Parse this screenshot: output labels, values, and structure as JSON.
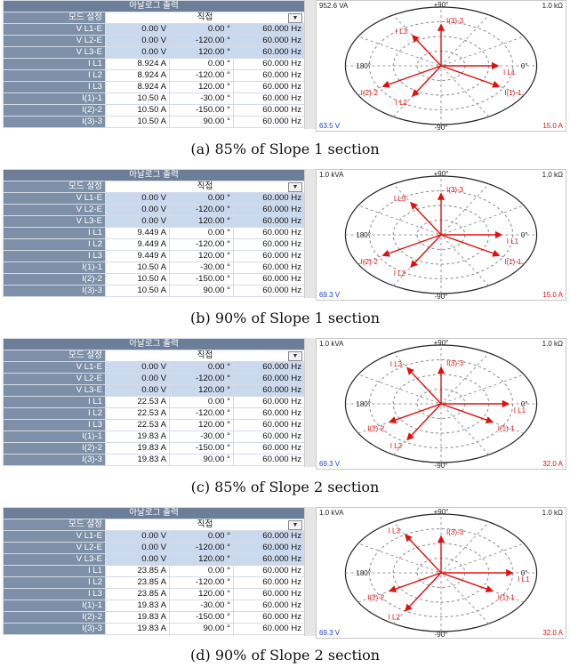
{
  "labels": {
    "title": "아날로그 출력",
    "mode_label": "모드 설정",
    "mode_value": "직접",
    "rows": [
      "V L1-E",
      "V L2-E",
      "V L3-E",
      "I L1",
      "I L2",
      "I L3",
      "I(1)-1",
      "I(2)-2",
      "I(3)-3"
    ]
  },
  "panels": [
    {
      "caption": "(a) 85% of Slope 1 section",
      "rows": [
        {
          "mag": "0.00 V",
          "ang": "0.00 °",
          "freq": "60.000 Hz"
        },
        {
          "mag": "0.00 V",
          "ang": "-120.00 °",
          "freq": "60.000 Hz"
        },
        {
          "mag": "0.00 V",
          "ang": "120.00 °",
          "freq": "60.000 Hz"
        },
        {
          "mag": "8.924 A",
          "ang": "0.00 °",
          "freq": "60.000 Hz"
        },
        {
          "mag": "8.924 A",
          "ang": "-120.00 °",
          "freq": "60.000 Hz"
        },
        {
          "mag": "8.924 A",
          "ang": "120.00 °",
          "freq": "60.000 Hz"
        },
        {
          "mag": "10.50 A",
          "ang": "-30.00 °",
          "freq": "60.000 Hz"
        },
        {
          "mag": "10.50 A",
          "ang": "-150.00 °",
          "freq": "60.000 Hz"
        },
        {
          "mag": "10.50 A",
          "ang": "90.00 °",
          "freq": "60.000 Hz"
        }
      ],
      "plot": {
        "top_left": "952.6 VA",
        "top_right": "1.0 kΩ",
        "bottom_left": "63.5 V",
        "bottom_right": "15.0 A",
        "deg_top": "+90°",
        "deg_bottom": "-90°",
        "deg_left": "180°",
        "deg_right": "0°",
        "vectors": [
          {
            "label": "I L1",
            "mag": 8.924,
            "ang": 0
          },
          {
            "label": "I L2",
            "mag": 8.924,
            "ang": -120
          },
          {
            "label": "I L3",
            "mag": 8.924,
            "ang": 120
          },
          {
            "label": "I(1)-1",
            "mag": 10.5,
            "ang": -30
          },
          {
            "label": "I(2)-2",
            "mag": 10.5,
            "ang": -150
          },
          {
            "label": "I(3)-3",
            "mag": 10.5,
            "ang": 90
          }
        ],
        "scale": 15.0
      }
    },
    {
      "caption": "(b) 90% of Slope 1 section",
      "rows": [
        {
          "mag": "0.00 V",
          "ang": "0.00 °",
          "freq": "60.000 Hz"
        },
        {
          "mag": "0.00 V",
          "ang": "-120.00 °",
          "freq": "60.000 Hz"
        },
        {
          "mag": "0.00 V",
          "ang": "120.00 °",
          "freq": "60.000 Hz"
        },
        {
          "mag": "9.449 A",
          "ang": "0.00 °",
          "freq": "60.000 Hz"
        },
        {
          "mag": "9.449 A",
          "ang": "-120.00 °",
          "freq": "60.000 Hz"
        },
        {
          "mag": "9.449 A",
          "ang": "120.00 °",
          "freq": "60.000 Hz"
        },
        {
          "mag": "10.50 A",
          "ang": "-30.00 °",
          "freq": "60.000 Hz"
        },
        {
          "mag": "10.50 A",
          "ang": "-150.00 °",
          "freq": "60.000 Hz"
        },
        {
          "mag": "10.50 A",
          "ang": "90.00 °",
          "freq": "60.000 Hz"
        }
      ],
      "plot": {
        "top_left": "1.0 kVA",
        "top_right": "1.0 kΩ",
        "bottom_left": "69.3 V",
        "bottom_right": "15.0 A",
        "deg_top": "+90°",
        "deg_bottom": "-90°",
        "deg_left": "180°",
        "deg_right": "0°",
        "vectors": [
          {
            "label": "I L1",
            "mag": 9.449,
            "ang": 0
          },
          {
            "label": "I L2",
            "mag": 9.449,
            "ang": -120
          },
          {
            "label": "I L3",
            "mag": 9.449,
            "ang": 120
          },
          {
            "label": "I(1)-1",
            "mag": 10.5,
            "ang": -30
          },
          {
            "label": "I(2)-2",
            "mag": 10.5,
            "ang": -150
          },
          {
            "label": "I(3)-3",
            "mag": 10.5,
            "ang": 90
          }
        ],
        "scale": 15.0
      }
    },
    {
      "caption": "(c) 85% of Slope 2 section",
      "rows": [
        {
          "mag": "0.00 V",
          "ang": "0.00 °",
          "freq": "60.000 Hz"
        },
        {
          "mag": "0.00 V",
          "ang": "-120.00 °",
          "freq": "60.000 Hz"
        },
        {
          "mag": "0.00 V",
          "ang": "120.00 °",
          "freq": "60.000 Hz"
        },
        {
          "mag": "22.53 A",
          "ang": "0.00 °",
          "freq": "60.000 Hz"
        },
        {
          "mag": "22.53 A",
          "ang": "-120.00 °",
          "freq": "60.000 Hz"
        },
        {
          "mag": "22.53 A",
          "ang": "120.00 °",
          "freq": "60.000 Hz"
        },
        {
          "mag": "19.83 A",
          "ang": "-30.00 °",
          "freq": "60.000 Hz"
        },
        {
          "mag": "19.83 A",
          "ang": "-150.00 °",
          "freq": "60.000 Hz"
        },
        {
          "mag": "19.83 A",
          "ang": "90.00 °",
          "freq": "60.000 Hz"
        }
      ],
      "plot": {
        "top_left": "1.0 kVA",
        "top_right": "1.0 kΩ",
        "bottom_left": "69.3 V",
        "bottom_right": "32.0 A",
        "deg_top": "+90°",
        "deg_bottom": "-90°",
        "deg_left": "180°",
        "deg_right": "0°",
        "vectors": [
          {
            "label": "I L1",
            "mag": 22.53,
            "ang": 0
          },
          {
            "label": "I L2",
            "mag": 22.53,
            "ang": -120
          },
          {
            "label": "I L3",
            "mag": 22.53,
            "ang": 120
          },
          {
            "label": "I(1)-1",
            "mag": 19.83,
            "ang": -30
          },
          {
            "label": "I(2)-2",
            "mag": 19.83,
            "ang": -150
          },
          {
            "label": "I(3)-3",
            "mag": 19.83,
            "ang": 90
          }
        ],
        "scale": 32.0
      }
    },
    {
      "caption": "(d) 90% of Slope 2 section",
      "rows": [
        {
          "mag": "0.00 V",
          "ang": "0.00 °",
          "freq": "60.000 Hz"
        },
        {
          "mag": "0.00 V",
          "ang": "-120.00 °",
          "freq": "60.000 Hz"
        },
        {
          "mag": "0.00 V",
          "ang": "120.00 °",
          "freq": "60.000 Hz"
        },
        {
          "mag": "23.85 A",
          "ang": "0.00 °",
          "freq": "60.000 Hz"
        },
        {
          "mag": "23.85 A",
          "ang": "-120.00 °",
          "freq": "60.000 Hz"
        },
        {
          "mag": "23.85 A",
          "ang": "120.00 °",
          "freq": "60.000 Hz"
        },
        {
          "mag": "19.83 A",
          "ang": "-30.00 °",
          "freq": "60.000 Hz"
        },
        {
          "mag": "19.83 A",
          "ang": "-150.00 °",
          "freq": "60.000 Hz"
        },
        {
          "mag": "19.83 A",
          "ang": "90.00 °",
          "freq": "60.000 Hz"
        }
      ],
      "plot": {
        "top_left": "1.0 kVA",
        "top_right": "1.0 kΩ",
        "bottom_left": "69.3 V",
        "bottom_right": "32.0 A",
        "deg_top": "+90°",
        "deg_bottom": "-90°",
        "deg_left": "180°",
        "deg_right": "0°",
        "vectors": [
          {
            "label": "I L1",
            "mag": 23.85,
            "ang": 0
          },
          {
            "label": "I L2",
            "mag": 23.85,
            "ang": -120
          },
          {
            "label": "I L3",
            "mag": 23.85,
            "ang": 120
          },
          {
            "label": "I(1)-1",
            "mag": 19.83,
            "ang": -30
          },
          {
            "label": "I(2)-2",
            "mag": 19.83,
            "ang": -150
          },
          {
            "label": "I(3)-3",
            "mag": 19.83,
            "ang": 90
          }
        ],
        "scale": 32.0
      }
    }
  ],
  "colors": {
    "header_bg": "#7e90a8",
    "voltage_cell_bg": "#cbd9ee",
    "vector": "#e01010",
    "voltage_text": "#1a3ccf",
    "current_text": "#e01010"
  }
}
